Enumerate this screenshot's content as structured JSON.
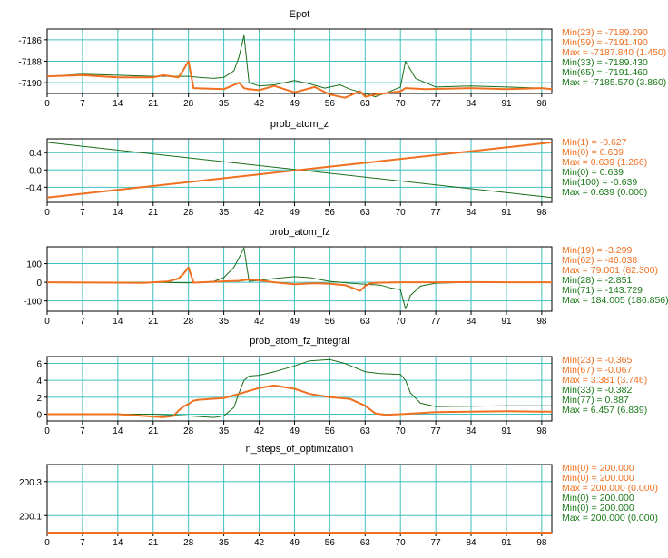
{
  "colors": {
    "series1": "#f07020",
    "series2": "#1a6e1a",
    "grid": "#40c0c0",
    "frame": "#000000"
  },
  "x_ticks": [
    "0",
    "7",
    "14",
    "21",
    "28",
    "35",
    "42",
    "49",
    "56",
    "63",
    "70",
    "77",
    "84",
    "91",
    "98"
  ],
  "chart_data": [
    {
      "type": "line",
      "title": "Epot",
      "xlim": [
        0,
        100
      ],
      "ylim": [
        -7191,
        -7185
      ],
      "yticks": [
        "-7186",
        "-7188",
        "-7190"
      ],
      "ytick_values": [
        -7186,
        -7188,
        -7190
      ],
      "legend": [
        "Min(23) = -7189.290",
        "Min(59) = -7191.490",
        "Max = -7187.840 (1.450)",
        "Min(33) = -7189.430",
        "Min(65) = -7191.460",
        "Max = -7185.570 (3.860)"
      ],
      "series": [
        {
          "values_x": [
            0,
            7,
            14,
            21,
            23,
            26,
            27,
            28,
            29,
            35,
            38,
            39,
            40,
            42,
            45,
            49,
            53,
            56,
            59,
            62,
            63,
            65,
            70,
            71,
            75,
            84,
            91,
            98,
            100
          ],
          "values_y": [
            -7189.4,
            -7189.3,
            -7189.5,
            -7189.5,
            -7189.3,
            -7189.5,
            -7188.8,
            -7188.0,
            -7190.5,
            -7190.6,
            -7190.0,
            -7190.5,
            -7190.6,
            -7190.7,
            -7190.3,
            -7190.9,
            -7190.4,
            -7191.1,
            -7191.4,
            -7190.8,
            -7191.3,
            -7191.1,
            -7190.8,
            -7190.5,
            -7190.6,
            -7190.5,
            -7190.6,
            -7190.5,
            -7190.6
          ]
        },
        {
          "values_x": [
            0,
            7,
            14,
            21,
            28,
            30,
            33,
            35,
            37,
            38,
            39,
            40,
            42,
            45,
            49,
            52,
            55,
            58,
            60,
            63,
            65,
            68,
            70,
            71,
            73,
            77,
            84,
            91,
            98,
            100
          ],
          "values_y": [
            -7189.4,
            -7189.2,
            -7189.3,
            -7189.4,
            -7189.4,
            -7189.5,
            -7189.6,
            -7189.5,
            -7188.9,
            -7187.6,
            -7185.6,
            -7190.0,
            -7190.3,
            -7190.2,
            -7189.8,
            -7190.1,
            -7190.5,
            -7190.2,
            -7190.6,
            -7191.0,
            -7191.3,
            -7190.8,
            -7190.4,
            -7188.0,
            -7189.6,
            -7190.4,
            -7190.3,
            -7190.4,
            -7190.5,
            -7190.6
          ]
        }
      ]
    },
    {
      "type": "line",
      "title": "prob_atom_z",
      "xlim": [
        0,
        100
      ],
      "ylim": [
        -0.75,
        0.72
      ],
      "yticks": [
        "0.4",
        "0.0",
        "-0.4"
      ],
      "ytick_values": [
        0.4,
        0.0,
        -0.4
      ],
      "legend": [
        "Min(1) = -0.627",
        "Min(0) = 0.639",
        "Max = 0.639 (1.266)",
        "Min(0) = 0.639",
        "Min(100) = -0.639",
        "Max = 0.639 (0.000)"
      ],
      "series": [
        {
          "values_x": [
            0,
            100
          ],
          "values_y": [
            -0.639,
            0.639
          ]
        },
        {
          "values_x": [
            0,
            100
          ],
          "values_y": [
            0.639,
            -0.639
          ]
        }
      ]
    },
    {
      "type": "line",
      "title": "prob_atom_fz",
      "xlim": [
        0,
        100
      ],
      "ylim": [
        -155,
        190
      ],
      "yticks": [
        "100",
        "0",
        "-100"
      ],
      "ytick_values": [
        100,
        0,
        -100
      ],
      "legend": [
        "Min(19) = -3.299",
        "Min(62) = -46.038",
        "Max = 79.001 (82.300)",
        "Min(28) = -2.851",
        "Min(71) = -143.729",
        "Max = 184.005 (186.856)"
      ],
      "series": [
        {
          "values_x": [
            0,
            19,
            24,
            26,
            27,
            28,
            29,
            35,
            38,
            40,
            42,
            45,
            49,
            53,
            56,
            59,
            61,
            62,
            63,
            64,
            66,
            70,
            77,
            84,
            91,
            98,
            100
          ],
          "values_y": [
            0,
            -3,
            5,
            20,
            45,
            79,
            -2,
            5,
            8,
            15,
            10,
            0,
            -10,
            -5,
            -8,
            -15,
            -35,
            -46,
            -20,
            -5,
            -2,
            0,
            0,
            1,
            0,
            0,
            0
          ]
        },
        {
          "values_x": [
            0,
            21,
            28,
            33,
            35,
            37,
            38,
            39,
            40,
            42,
            45,
            49,
            52,
            56,
            60,
            63,
            66,
            68,
            70,
            71,
            72,
            74,
            77,
            84,
            91,
            98,
            100
          ],
          "values_y": [
            0,
            0,
            -3,
            5,
            25,
            80,
            130,
            184,
            5,
            10,
            20,
            30,
            25,
            5,
            -5,
            -10,
            -15,
            -30,
            -40,
            -143,
            -70,
            -20,
            -5,
            0,
            0,
            0,
            0
          ]
        }
      ]
    },
    {
      "type": "line",
      "title": "prob_atom_fz_integral",
      "xlim": [
        0,
        100
      ],
      "ylim": [
        -0.8,
        6.8
      ],
      "yticks": [
        "6",
        "4",
        "2",
        "0"
      ],
      "ytick_values": [
        6,
        4,
        2,
        0
      ],
      "legend": [
        "Min(23) = -0.365",
        "Min(67) = -0.067",
        "Max = 3.381 (3.746)",
        "Min(33) = -0.382",
        "Min(77) = 0.887",
        "Max = 6.457 (6.839)"
      ],
      "series": [
        {
          "values_x": [
            0,
            14,
            23,
            25,
            26,
            27,
            28,
            29,
            30,
            35,
            38,
            42,
            45,
            49,
            52,
            56,
            60,
            63,
            65,
            67,
            70,
            77,
            84,
            91,
            98,
            100
          ],
          "values_y": [
            0,
            0,
            -0.36,
            -0.2,
            0.4,
            0.9,
            1.2,
            1.6,
            1.7,
            1.9,
            2.4,
            3.1,
            3.38,
            3.0,
            2.4,
            2.0,
            1.8,
            1.0,
            0.1,
            -0.07,
            0.0,
            0.25,
            0.3,
            0.35,
            0.3,
            0.3
          ]
        },
        {
          "values_x": [
            0,
            21,
            28,
            33,
            35,
            37,
            38,
            39,
            40,
            42,
            45,
            49,
            52,
            56,
            59,
            63,
            66,
            70,
            71,
            72,
            74,
            77,
            84,
            91,
            98,
            100
          ],
          "values_y": [
            0,
            0,
            -0.2,
            -0.38,
            -0.2,
            0.8,
            2.5,
            4.0,
            4.5,
            4.6,
            5.0,
            5.7,
            6.3,
            6.45,
            6.0,
            5.0,
            4.8,
            4.7,
            4.0,
            2.5,
            1.3,
            0.9,
            0.95,
            1.0,
            1.0,
            1.0
          ]
        }
      ]
    },
    {
      "type": "line",
      "title": "n_steps_of_optimization",
      "xlim": [
        0,
        100
      ],
      "ylim": [
        200.0,
        200.4
      ],
      "yticks": [
        "200.3",
        "200.1"
      ],
      "ytick_values": [
        200.3,
        200.1
      ],
      "legend": [
        "Min(0) = 200.000",
        "Min(0) = 200.000",
        "Max = 200.000 (0.000)",
        "Min(0) = 200.000",
        "Min(0) = 200.000",
        "Max = 200.000 (0.000)"
      ],
      "series": [
        {
          "values_x": [
            0,
            100
          ],
          "values_y": [
            200.0,
            200.0
          ]
        },
        {
          "values_x": [
            0,
            100
          ],
          "values_y": [
            200.0,
            200.0
          ]
        }
      ]
    }
  ]
}
